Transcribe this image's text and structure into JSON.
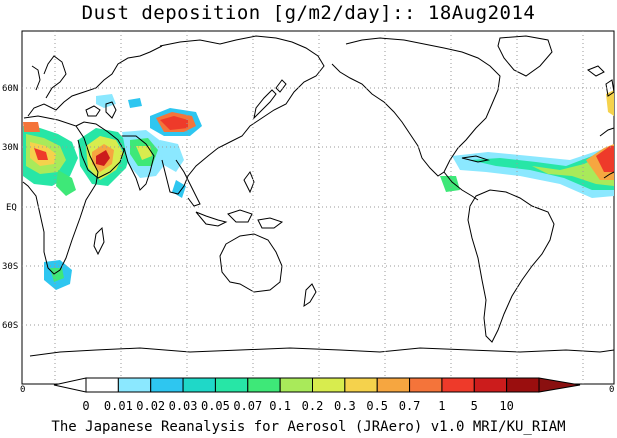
{
  "title": "Dust deposition [g/m2/day]:: 18Aug2014",
  "footer": "The Japanese Reanalysis for Aerosol (JRAero) v1.0 MRI/KU_RIAM",
  "map": {
    "projection": "equirectangular, centered near 140E",
    "lat_labels": [
      "60N",
      "30N",
      "EQ",
      "30S",
      "60S"
    ],
    "gridlines": "dotted",
    "dust_regions": [
      "Sahara / West Africa",
      "Arabian Peninsula",
      "Indian subcontinent",
      "Central Asia / Taklimakan",
      "Atlantic dust plume",
      "Caribbean",
      "Southern Africa"
    ]
  },
  "colorbar": {
    "edge_left": "0",
    "edge_right": "0",
    "tick_labels": [
      "0",
      "0.01",
      "0.02",
      "0.03",
      "0.05",
      "0.07",
      "0.1",
      "0.2",
      "0.3",
      "0.5",
      "0.7",
      "1",
      "5",
      "10"
    ],
    "colors": [
      "#ffffff",
      "#8be8ff",
      "#2ec6f0",
      "#1fd8c8",
      "#27e6a6",
      "#3ee878",
      "#a9ea5a",
      "#d8ec4e",
      "#f5d24c",
      "#f6a640",
      "#f4743a",
      "#ee3a2a",
      "#cc1c1c",
      "#9a0e0e"
    ],
    "under_color": "#ffffff",
    "over_color": "#8a1010"
  }
}
